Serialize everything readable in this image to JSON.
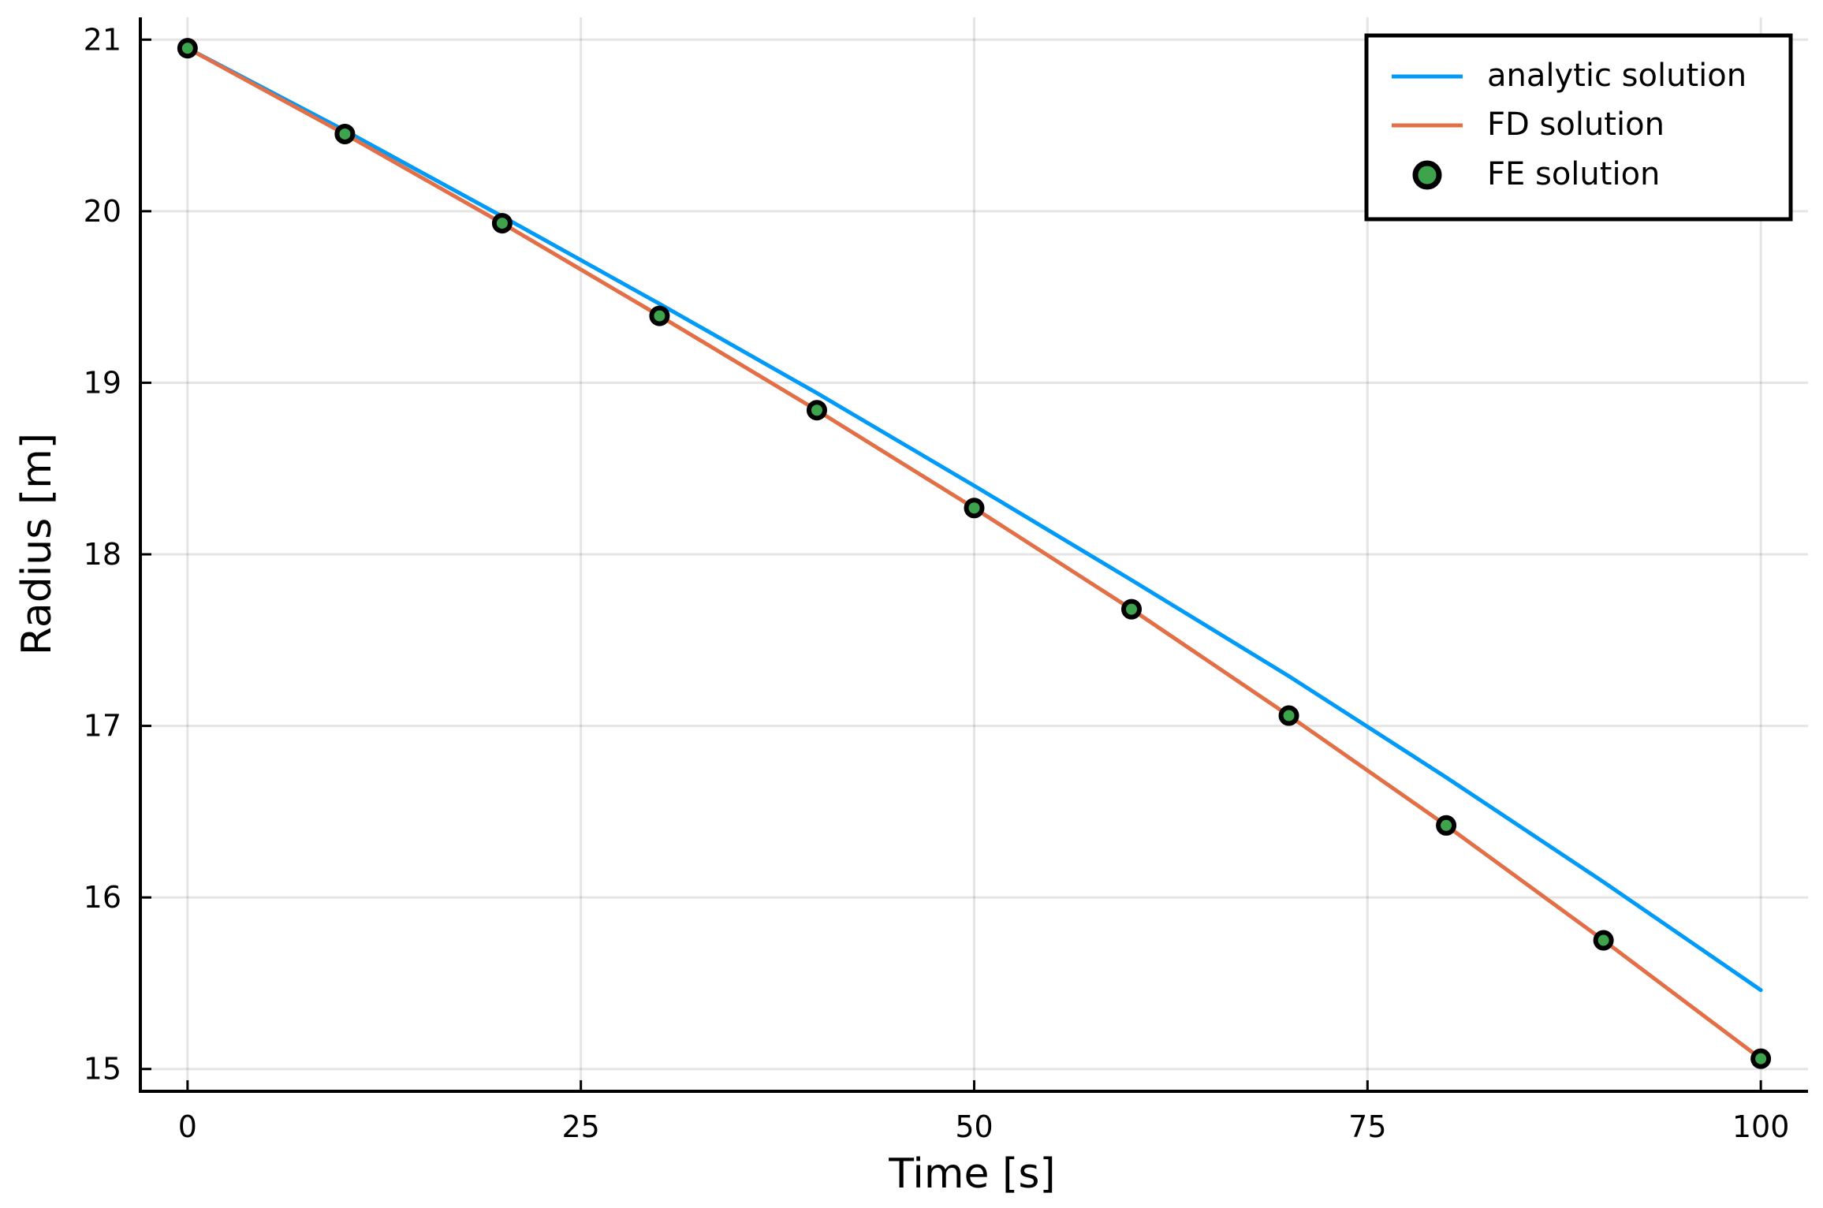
{
  "chart_data": {
    "type": "line",
    "title": "",
    "xlabel": "Time [s]",
    "ylabel": "Radius [m]",
    "xlim": [
      -3,
      103
    ],
    "ylim": [
      14.87,
      21.13
    ],
    "x_ticks": [
      0,
      25,
      50,
      75,
      100
    ],
    "x_tick_labels": [
      "0",
      "25",
      "50",
      "75",
      "100"
    ],
    "y_ticks": [
      15,
      16,
      17,
      18,
      19,
      20,
      21
    ],
    "y_tick_labels": [
      "15",
      "16",
      "17",
      "18",
      "19",
      "20",
      "21"
    ],
    "grid": true,
    "legend_position": "top-right",
    "series": [
      {
        "name": "analytic solution",
        "kind": "line",
        "color": "#009af9",
        "x": [
          0,
          10,
          20,
          30,
          40,
          50,
          60,
          70,
          80,
          90,
          100
        ],
        "y": [
          20.95,
          20.47,
          19.97,
          19.46,
          18.94,
          18.4,
          17.85,
          17.29,
          16.7,
          16.09,
          15.46
        ]
      },
      {
        "name": "FD solution",
        "kind": "line",
        "color": "#e26f46",
        "x": [
          0,
          10,
          20,
          30,
          40,
          50,
          60,
          70,
          80,
          90,
          100
        ],
        "y": [
          20.95,
          20.45,
          19.93,
          19.39,
          18.84,
          18.27,
          17.68,
          17.06,
          16.42,
          15.75,
          15.06
        ]
      },
      {
        "name": "FE solution",
        "kind": "scatter",
        "color": "#3da44d",
        "x": [
          0,
          10,
          20,
          30,
          40,
          50,
          60,
          70,
          80,
          90,
          100
        ],
        "y": [
          20.95,
          20.45,
          19.93,
          19.39,
          18.84,
          18.27,
          17.68,
          17.06,
          16.42,
          15.75,
          15.06
        ]
      }
    ]
  }
}
